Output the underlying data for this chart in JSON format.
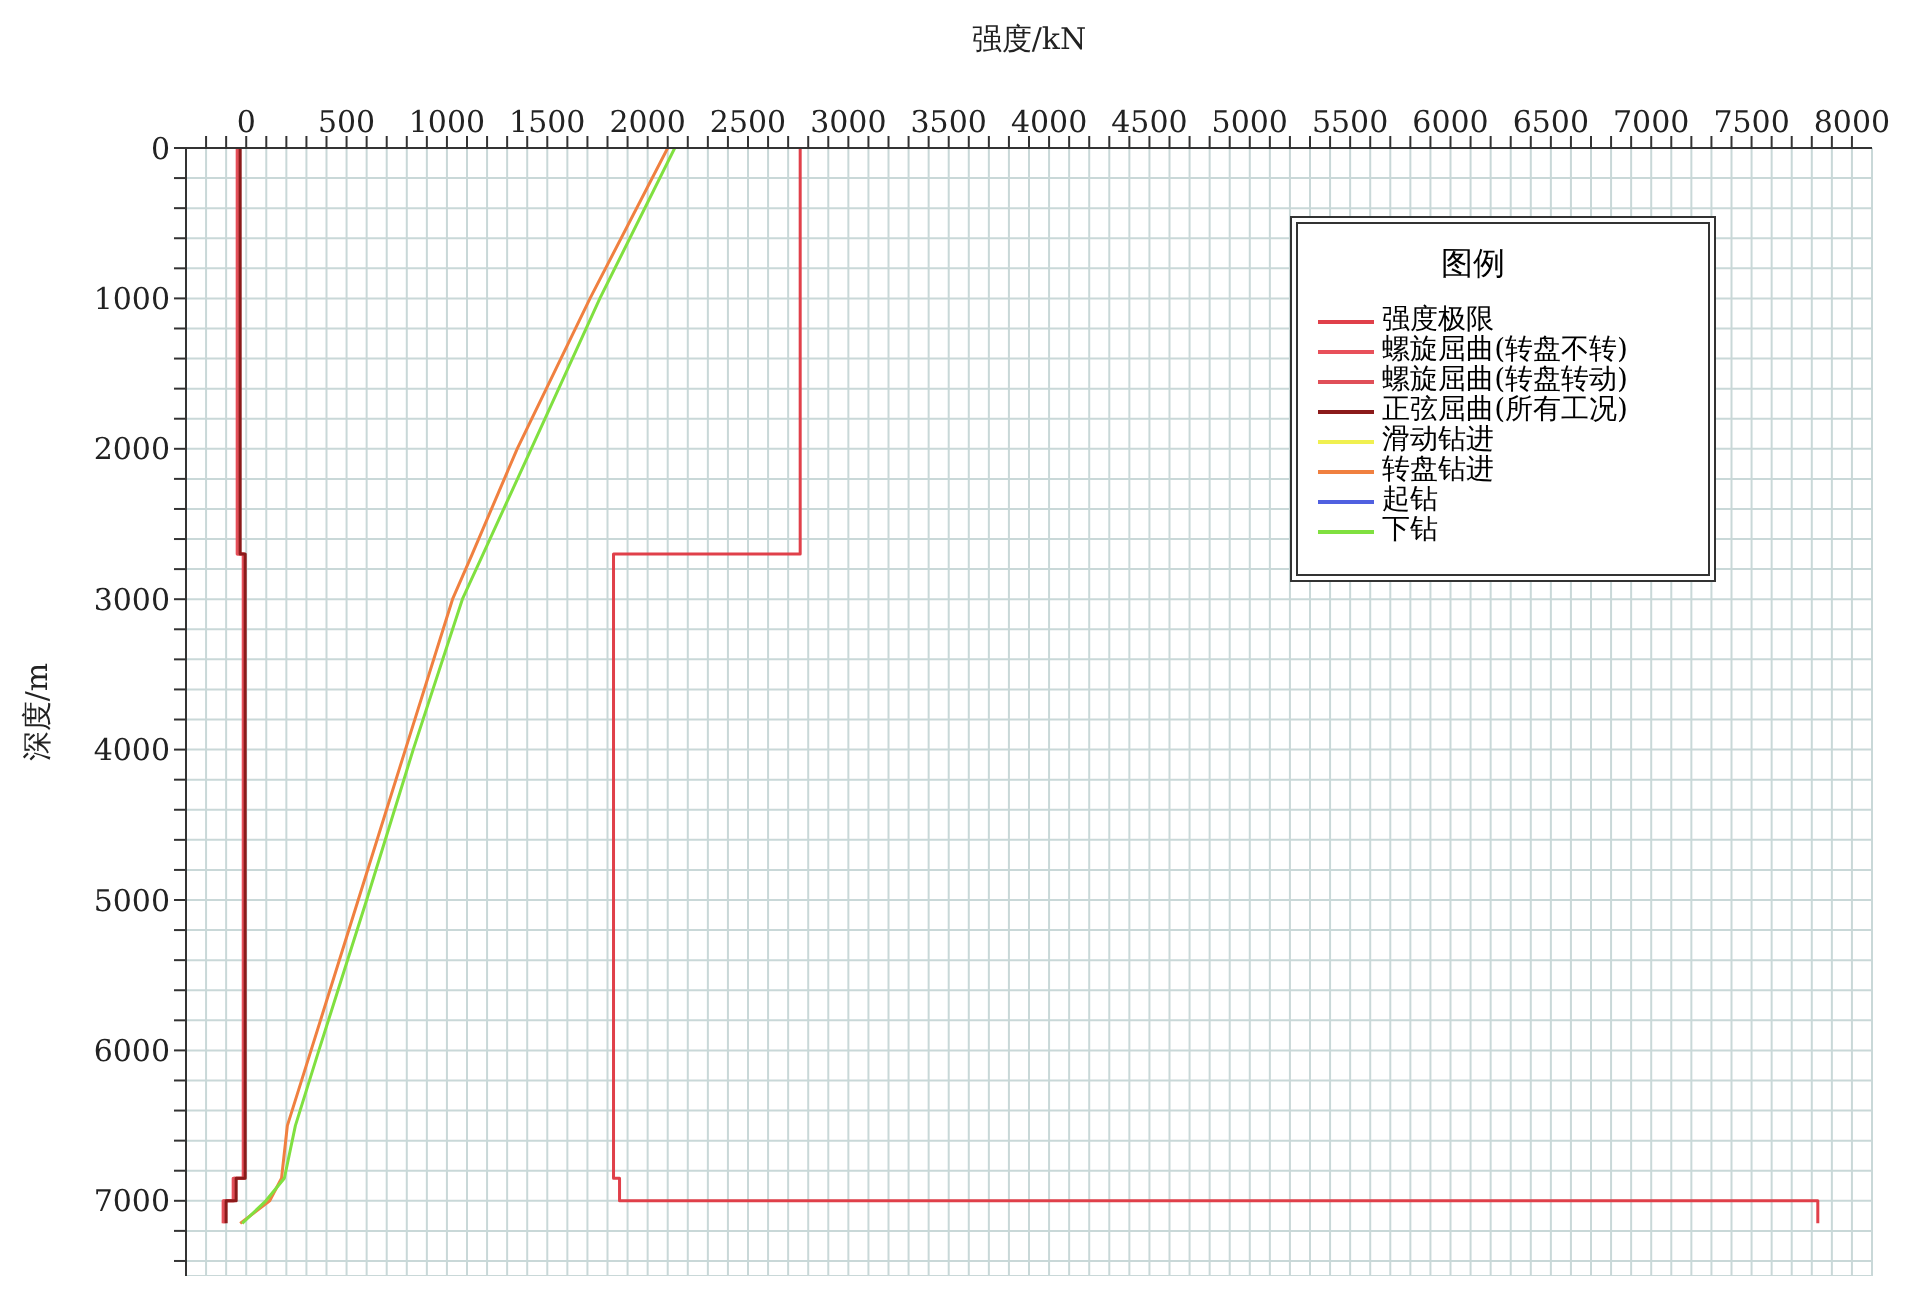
{
  "chart_data": {
    "type": "line",
    "xlabel": "强度/kN",
    "ylabel": "深度/m",
    "legend_title": "图例",
    "legend": "top right",
    "grid": true,
    "xlim": [
      -300,
      8100
    ],
    "ylim": [
      7500,
      0
    ],
    "xticks": [
      {
        "value": -200,
        "label": null
      },
      {
        "value": -100,
        "label": null
      },
      0,
      {
        "value": 100,
        "label": null
      },
      {
        "value": 200,
        "label": null
      },
      {
        "value": 300,
        "label": null
      },
      {
        "value": 400,
        "label": null
      },
      500,
      {
        "value": 600,
        "label": null
      },
      {
        "value": 700,
        "label": null
      },
      {
        "value": 800,
        "label": null
      },
      {
        "value": 900,
        "label": null
      },
      1000,
      {
        "value": 1100,
        "label": null
      },
      {
        "value": 1200,
        "label": null
      },
      {
        "value": 1300,
        "label": null
      },
      {
        "value": 1400,
        "label": null
      },
      1500,
      {
        "value": 1600,
        "label": null
      },
      {
        "value": 1700,
        "label": null
      },
      {
        "value": 1800,
        "label": null
      },
      {
        "value": 1900,
        "label": null
      },
      2000,
      {
        "value": 2100,
        "label": null
      },
      {
        "value": 2200,
        "label": null
      },
      {
        "value": 2300,
        "label": null
      },
      {
        "value": 2400,
        "label": null
      },
      2500,
      {
        "value": 2600,
        "label": null
      },
      {
        "value": 2700,
        "label": null
      },
      {
        "value": 2800,
        "label": null
      },
      {
        "value": 2900,
        "label": null
      },
      3000,
      {
        "value": 3100,
        "label": null
      },
      {
        "value": 3200,
        "label": null
      },
      {
        "value": 3300,
        "label": null
      },
      {
        "value": 3400,
        "label": null
      },
      3500,
      {
        "value": 3600,
        "label": null
      },
      {
        "value": 3700,
        "label": null
      },
      {
        "value": 3800,
        "label": null
      },
      {
        "value": 3900,
        "label": null
      },
      4000,
      {
        "value": 4100,
        "label": null
      },
      {
        "value": 4200,
        "label": null
      },
      {
        "value": 4300,
        "label": null
      },
      {
        "value": 4400,
        "label": null
      },
      4500,
      {
        "value": 4600,
        "label": null
      },
      {
        "value": 4700,
        "label": null
      },
      {
        "value": 4800,
        "label": null
      },
      {
        "value": 4900,
        "label": null
      },
      5000,
      {
        "value": 5100,
        "label": null
      },
      {
        "value": 5200,
        "label": null
      },
      {
        "value": 5300,
        "label": null
      },
      {
        "value": 5400,
        "label": null
      },
      5500,
      {
        "value": 5600,
        "label": null
      },
      {
        "value": 5700,
        "label": null
      },
      {
        "value": 5800,
        "label": null
      },
      {
        "value": 5900,
        "label": null
      },
      6000,
      {
        "value": 6100,
        "label": null
      },
      {
        "value": 6200,
        "label": null
      },
      {
        "value": 6300,
        "label": null
      },
      {
        "value": 6400,
        "label": null
      },
      6500,
      {
        "value": 6600,
        "label": null
      },
      {
        "value": 6700,
        "label": null
      },
      {
        "value": 6800,
        "label": null
      },
      {
        "value": 6900,
        "label": null
      },
      7000,
      {
        "value": 7100,
        "label": null
      },
      {
        "value": 7200,
        "label": null
      },
      {
        "value": 7300,
        "label": null
      },
      {
        "value": 7400,
        "label": null
      },
      7500,
      {
        "value": 7600,
        "label": null
      },
      {
        "value": 7700,
        "label": null
      },
      {
        "value": 7800,
        "label": null
      },
      {
        "value": 7900,
        "label": null
      },
      8000
    ],
    "yticks": [
      0,
      {
        "value": 200,
        "label": null
      },
      {
        "value": 400,
        "label": null
      },
      {
        "value": 600,
        "label": null
      },
      {
        "value": 800,
        "label": null
      },
      1000,
      {
        "value": 1200,
        "label": null
      },
      {
        "value": 1400,
        "label": null
      },
      {
        "value": 1600,
        "label": null
      },
      {
        "value": 1800,
        "label": null
      },
      2000,
      {
        "value": 2200,
        "label": null
      },
      {
        "value": 2400,
        "label": null
      },
      {
        "value": 2600,
        "label": null
      },
      {
        "value": 2800,
        "label": null
      },
      3000,
      {
        "value": 3200,
        "label": null
      },
      {
        "value": 3400,
        "label": null
      },
      {
        "value": 3600,
        "label": null
      },
      {
        "value": 3800,
        "label": null
      },
      4000,
      {
        "value": 4200,
        "label": null
      },
      {
        "value": 4400,
        "label": null
      },
      {
        "value": 4600,
        "label": null
      },
      {
        "value": 4800,
        "label": null
      },
      5000,
      {
        "value": 5200,
        "label": null
      },
      {
        "value": 5400,
        "label": null
      },
      {
        "value": 5600,
        "label": null
      },
      {
        "value": 5800,
        "label": null
      },
      6000,
      {
        "value": 6200,
        "label": null
      },
      {
        "value": 6400,
        "label": null
      },
      {
        "value": 6600,
        "label": null
      },
      {
        "value": 6800,
        "label": null
      },
      7000,
      {
        "value": 7200,
        "label": null
      },
      {
        "value": 7400,
        "label": null
      }
    ],
    "series": [
      {
        "name": "强度极限",
        "color": "#e0404a",
        "x": [
          2760,
          2760,
          1830,
          1830,
          1860,
          1860,
          7830,
          7830
        ],
        "values": [
          0,
          2700,
          2700,
          6850,
          6850,
          7000,
          7000,
          7150
        ]
      },
      {
        "name": "螺旋屈曲(转盘不转)",
        "color": "#e8505a",
        "x": [
          -45,
          -45,
          -15,
          -15,
          -65,
          -65,
          -115,
          -115
        ],
        "values": [
          0,
          2700,
          2700,
          6850,
          6850,
          7000,
          7000,
          7150
        ]
      },
      {
        "name": "螺旋屈曲(转盘转动)",
        "color": "#e04f58",
        "x": [
          -40,
          -40,
          -10,
          -10,
          -60,
          -60,
          -110,
          -110
        ],
        "values": [
          0,
          2700,
          2700,
          6850,
          6850,
          7000,
          7000,
          7150
        ]
      },
      {
        "name": "正弦屈曲(所有工况)",
        "color": "#8b1a1a",
        "x": [
          -30,
          -30,
          -5,
          -5,
          -50,
          -50,
          -100,
          -100
        ],
        "values": [
          0,
          2700,
          2700,
          6850,
          6850,
          7000,
          7000,
          7150
        ]
      },
      {
        "name": "滑动钻进",
        "color": "#f0f050",
        "x": [
          null
        ],
        "values": [
          null
        ]
      },
      {
        "name": "转盘钻进",
        "color": "#f08040",
        "x": [
          2100,
          1713,
          1350,
          1126,
          1028,
          793,
          558,
          323,
          205,
          176,
          117,
          -30
        ],
        "values": [
          0,
          1000,
          2000,
          2700,
          3000,
          4000,
          5000,
          6000,
          6500,
          6850,
          7000,
          7150
        ]
      },
      {
        "name": "起钻",
        "color": "#5060e0",
        "x": [
          null
        ],
        "values": [
          null
        ]
      },
      {
        "name": "下钻",
        "color": "#80e040",
        "x": [
          2135,
          1762,
          1420,
          1180,
          1077,
          832,
          600,
          362,
          245,
          190,
          98,
          -20
        ],
        "values": [
          0,
          1000,
          2000,
          2700,
          3000,
          4000,
          5000,
          6000,
          6500,
          6850,
          7000,
          7150
        ]
      }
    ]
  }
}
